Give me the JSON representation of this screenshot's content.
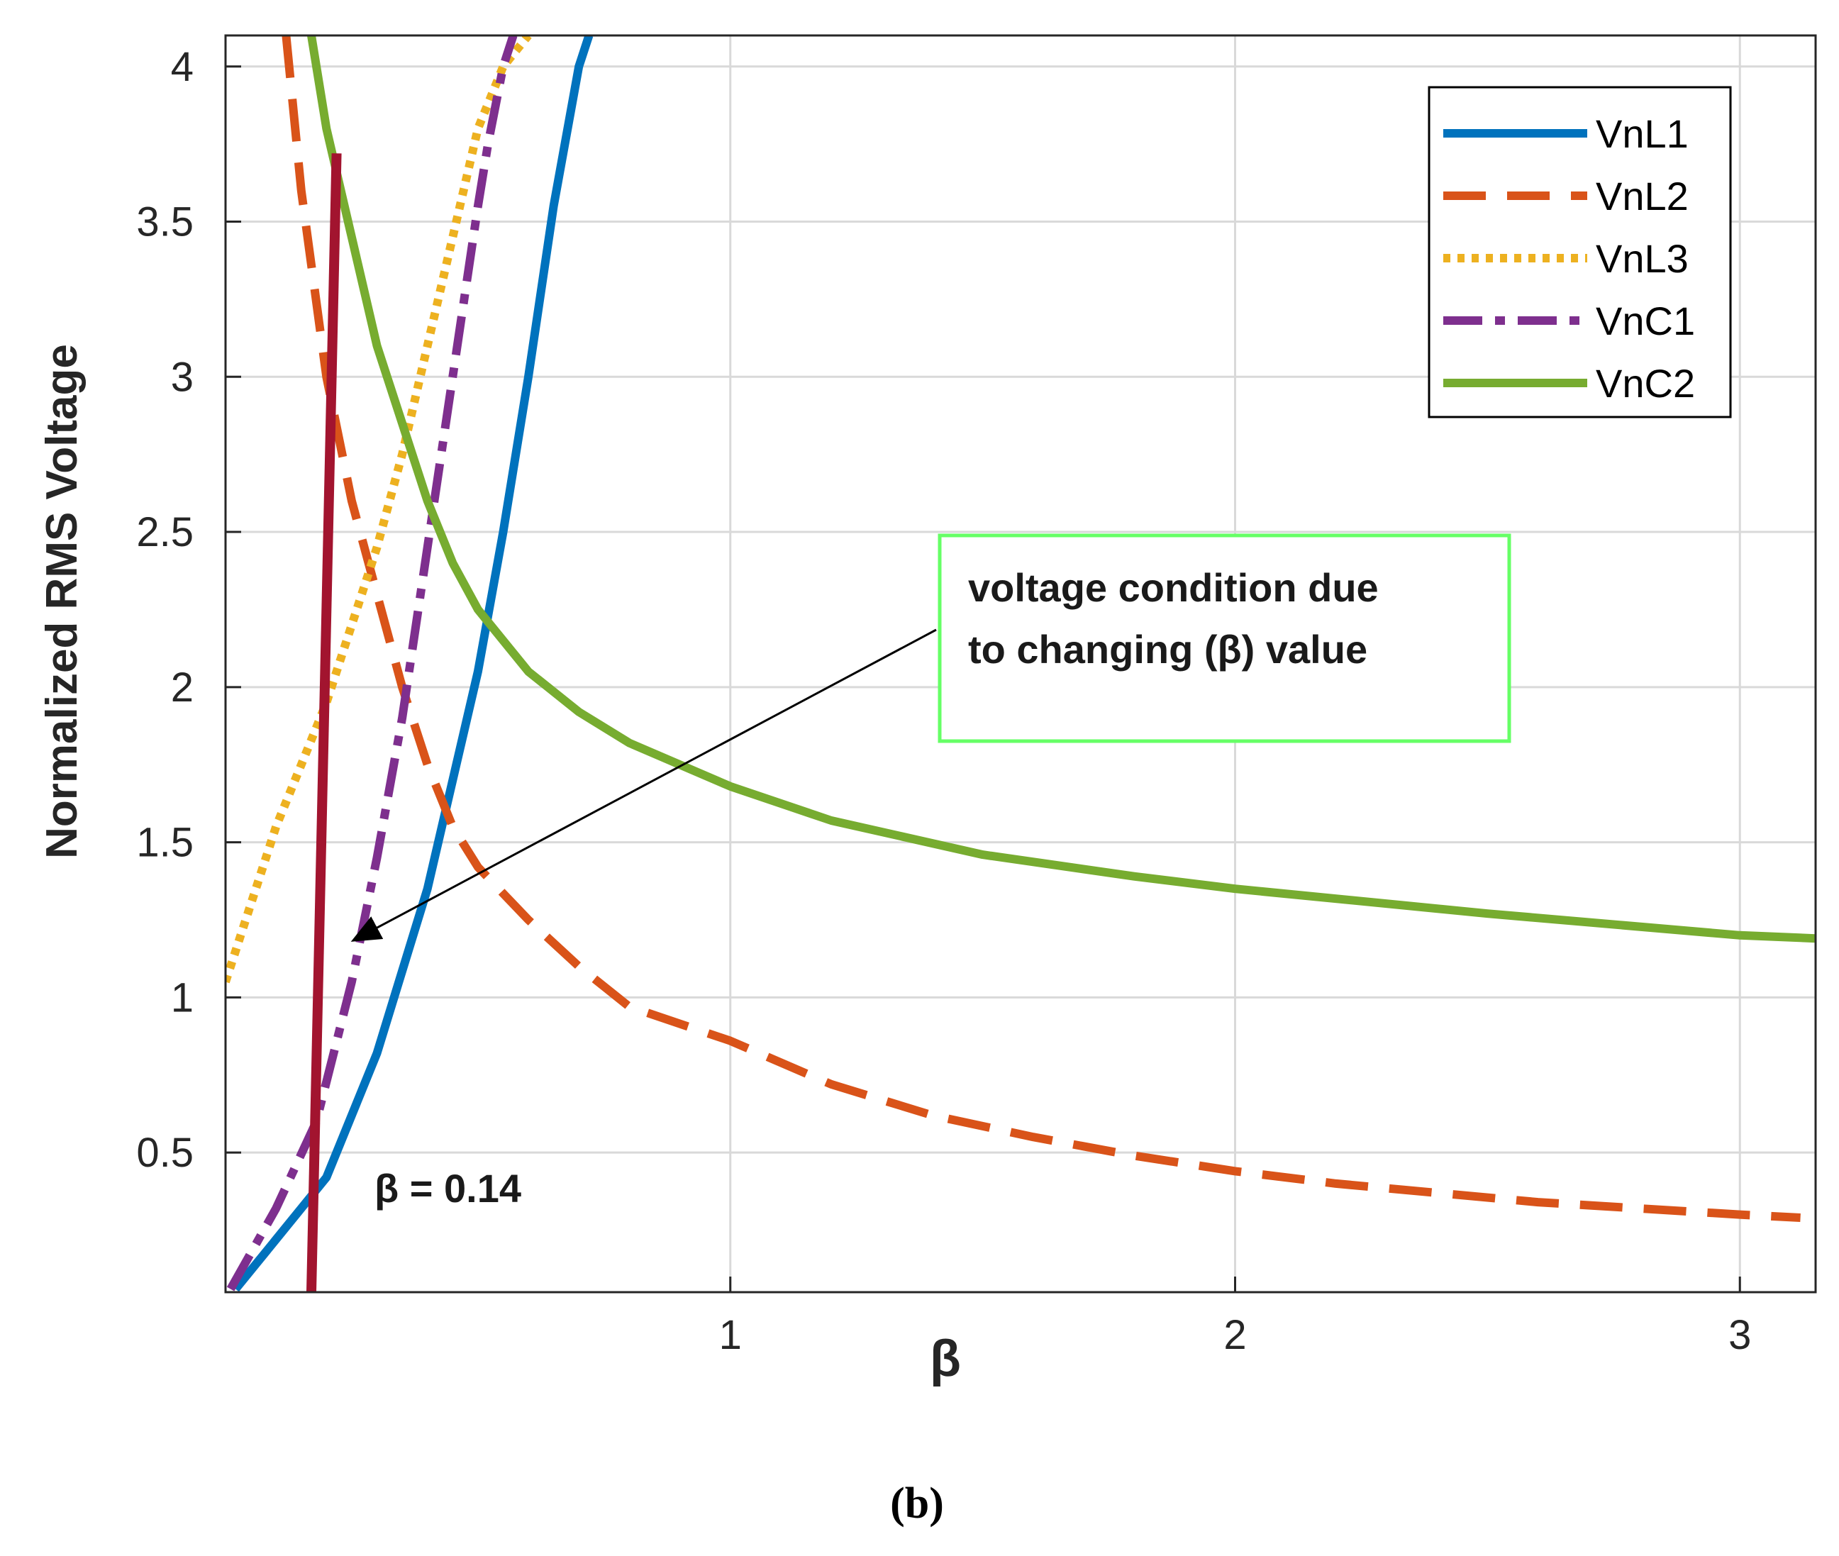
{
  "chart_data": {
    "type": "line",
    "title": "",
    "xlabel": "β",
    "ylabel": "Normalized RMS Voltage",
    "xlim": [
      0.0,
      3.15
    ],
    "ylim": [
      0.05,
      4.1
    ],
    "xticks": [
      1,
      2,
      3
    ],
    "yticks": [
      0.5,
      1,
      1.5,
      2,
      2.5,
      3,
      3.5,
      4
    ],
    "grid": true,
    "legend_position": "top-right",
    "series": [
      {
        "name": "VnL1",
        "color": "#0072BD",
        "style": "solid",
        "x": [
          0.02,
          0.1,
          0.2,
          0.3,
          0.4,
          0.5,
          0.55,
          0.6,
          0.65,
          0.7,
          0.72
        ],
        "y": [
          0.06,
          0.22,
          0.42,
          0.82,
          1.35,
          2.05,
          2.5,
          3.0,
          3.55,
          4.0,
          4.1
        ]
      },
      {
        "name": "VnL2",
        "color": "#D95319",
        "style": "dashed",
        "x": [
          0.12,
          0.15,
          0.2,
          0.25,
          0.3,
          0.35,
          0.4,
          0.45,
          0.5,
          0.6,
          0.7,
          0.8,
          1.0,
          1.2,
          1.4,
          1.6,
          1.8,
          2.0,
          2.2,
          2.4,
          2.6,
          2.8,
          3.0,
          3.12
        ],
        "y": [
          4.1,
          3.6,
          3.0,
          2.6,
          2.3,
          2.0,
          1.75,
          1.55,
          1.42,
          1.25,
          1.1,
          0.97,
          0.86,
          0.72,
          0.62,
          0.55,
          0.49,
          0.44,
          0.4,
          0.37,
          0.34,
          0.32,
          0.3,
          0.29
        ]
      },
      {
        "name": "VnL3",
        "color": "#EDB120",
        "style": "dotted",
        "x": [
          0.0,
          0.05,
          0.1,
          0.15,
          0.2,
          0.25,
          0.3,
          0.35,
          0.4,
          0.45,
          0.5,
          0.55,
          0.6
        ],
        "y": [
          1.05,
          1.3,
          1.55,
          1.75,
          1.95,
          2.2,
          2.45,
          2.75,
          3.1,
          3.45,
          3.8,
          4.0,
          4.1
        ]
      },
      {
        "name": "VnC1",
        "color": "#7E2F8E",
        "style": "dash-dot",
        "x": [
          0.01,
          0.1,
          0.18,
          0.25,
          0.3,
          0.35,
          0.4,
          0.45,
          0.5,
          0.52,
          0.55,
          0.57
        ],
        "y": [
          0.06,
          0.32,
          0.6,
          1.05,
          1.45,
          1.9,
          2.45,
          3.0,
          3.55,
          3.75,
          4.0,
          4.1
        ]
      },
      {
        "name": "VnC2",
        "color": "#77AC30",
        "style": "solid",
        "x": [
          0.17,
          0.2,
          0.25,
          0.3,
          0.35,
          0.4,
          0.45,
          0.5,
          0.6,
          0.7,
          0.8,
          1.0,
          1.2,
          1.5,
          1.8,
          2.0,
          2.5,
          3.0,
          3.15
        ],
        "y": [
          4.1,
          3.8,
          3.45,
          3.1,
          2.85,
          2.6,
          2.4,
          2.25,
          2.05,
          1.92,
          1.82,
          1.68,
          1.57,
          1.46,
          1.39,
          1.35,
          1.27,
          1.2,
          1.19
        ]
      }
    ],
    "marker_line": {
      "x_bottom": 0.17,
      "x_top": 0.22,
      "y_bottom": 0.05,
      "y_top": 3.72,
      "color": "#A2142F"
    },
    "annotations": {
      "box_line1": "voltage condition due",
      "box_line2": "to changing (β) value",
      "beta_label": "β = 0.14",
      "arrow_target": {
        "x": 0.22,
        "y": 1.15
      }
    },
    "caption": "(b)"
  }
}
